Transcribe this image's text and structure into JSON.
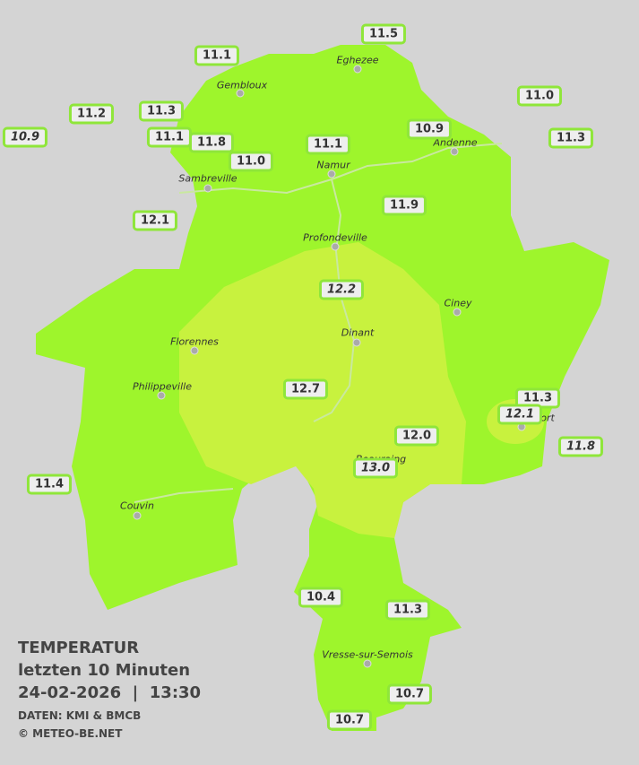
{
  "title": {
    "heading": "TEMPERATUR",
    "period": "letzten 10 Minuten",
    "datetime": "24-02-2026  |  13:30",
    "source": "DATEN: KMI & BMCB",
    "copyright": "© METEO-BE.NET"
  },
  "stations": [
    "11.5",
    "11.1",
    "11.2",
    "11.3",
    "10.9",
    "11.1",
    "11.8",
    "11.0",
    "11.1",
    "10.9",
    "11.0",
    "11.3",
    "11.9",
    "12.1",
    "12.2",
    "12.7",
    "11.3",
    "12.1",
    "12.0",
    "13.0",
    "11.8",
    "11.4",
    "10.4",
    "11.3",
    "10.7",
    "10.7"
  ],
  "places": [
    "Eghezee",
    "Gembloux",
    "Andenne",
    "Namur",
    "Sambreville",
    "Profondeville",
    "Ciney",
    "Florennes",
    "Dinant",
    "Philippeville",
    "Rochefort",
    "Beauraing",
    "Couvin",
    "Vresse-sur-Semois"
  ]
}
